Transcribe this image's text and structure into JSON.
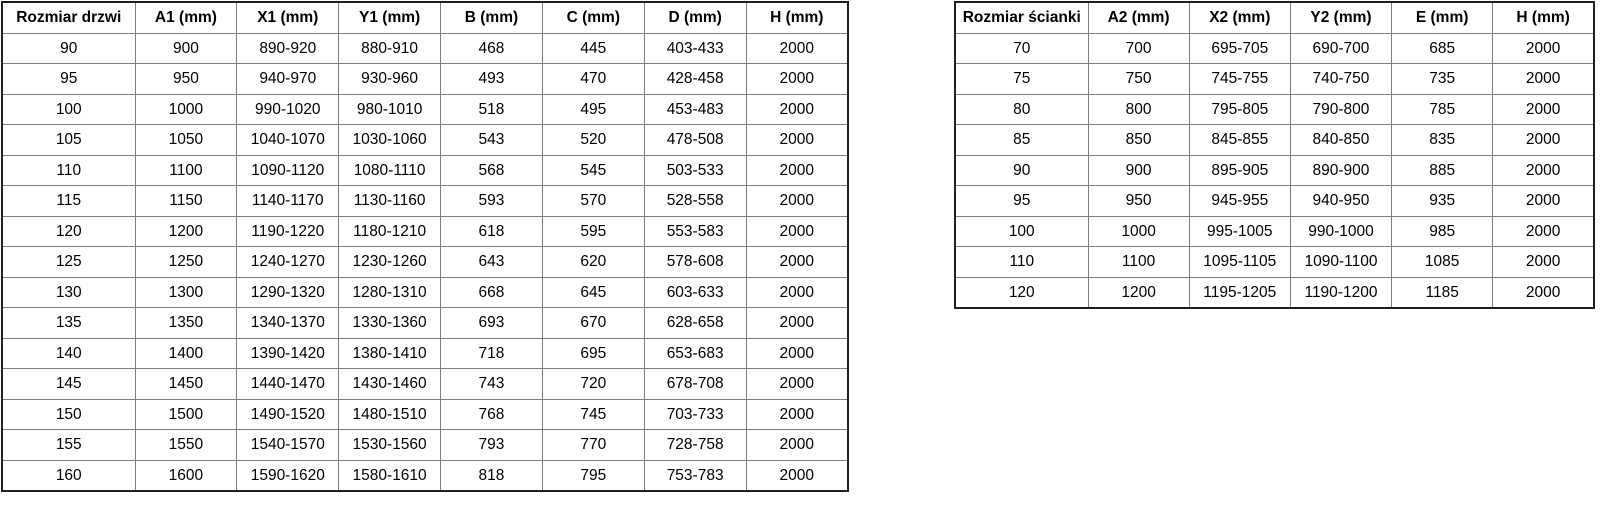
{
  "door_table": {
    "headers": [
      "Rozmiar drzwi",
      "A1 (mm)",
      "X1 (mm)",
      "Y1 (mm)",
      "B (mm)",
      "C (mm)",
      "D (mm)",
      "H (mm)"
    ],
    "rows": [
      [
        "90",
        "900",
        "890-920",
        "880-910",
        "468",
        "445",
        "403-433",
        "2000"
      ],
      [
        "95",
        "950",
        "940-970",
        "930-960",
        "493",
        "470",
        "428-458",
        "2000"
      ],
      [
        "100",
        "1000",
        "990-1020",
        "980-1010",
        "518",
        "495",
        "453-483",
        "2000"
      ],
      [
        "105",
        "1050",
        "1040-1070",
        "1030-1060",
        "543",
        "520",
        "478-508",
        "2000"
      ],
      [
        "110",
        "1100",
        "1090-1120",
        "1080-1110",
        "568",
        "545",
        "503-533",
        "2000"
      ],
      [
        "115",
        "1150",
        "1140-1170",
        "1130-1160",
        "593",
        "570",
        "528-558",
        "2000"
      ],
      [
        "120",
        "1200",
        "1190-1220",
        "1180-1210",
        "618",
        "595",
        "553-583",
        "2000"
      ],
      [
        "125",
        "1250",
        "1240-1270",
        "1230-1260",
        "643",
        "620",
        "578-608",
        "2000"
      ],
      [
        "130",
        "1300",
        "1290-1320",
        "1280-1310",
        "668",
        "645",
        "603-633",
        "2000"
      ],
      [
        "135",
        "1350",
        "1340-1370",
        "1330-1360",
        "693",
        "670",
        "628-658",
        "2000"
      ],
      [
        "140",
        "1400",
        "1390-1420",
        "1380-1410",
        "718",
        "695",
        "653-683",
        "2000"
      ],
      [
        "145",
        "1450",
        "1440-1470",
        "1430-1460",
        "743",
        "720",
        "678-708",
        "2000"
      ],
      [
        "150",
        "1500",
        "1490-1520",
        "1480-1510",
        "768",
        "745",
        "703-733",
        "2000"
      ],
      [
        "155",
        "1550",
        "1540-1570",
        "1530-1560",
        "793",
        "770",
        "728-758",
        "2000"
      ],
      [
        "160",
        "1600",
        "1590-1620",
        "1580-1610",
        "818",
        "795",
        "753-783",
        "2000"
      ]
    ]
  },
  "wall_table": {
    "headers": [
      "Rozmiar ścianki",
      "A2 (mm)",
      "X2 (mm)",
      "Y2 (mm)",
      "E (mm)",
      "H (mm)"
    ],
    "rows": [
      [
        "70",
        "700",
        "695-705",
        "690-700",
        "685",
        "2000"
      ],
      [
        "75",
        "750",
        "745-755",
        "740-750",
        "735",
        "2000"
      ],
      [
        "80",
        "800",
        "795-805",
        "790-800",
        "785",
        "2000"
      ],
      [
        "85",
        "850",
        "845-855",
        "840-850",
        "835",
        "2000"
      ],
      [
        "90",
        "900",
        "895-905",
        "890-900",
        "885",
        "2000"
      ],
      [
        "95",
        "950",
        "945-955",
        "940-950",
        "935",
        "2000"
      ],
      [
        "100",
        "1000",
        "995-1005",
        "990-1000",
        "985",
        "2000"
      ],
      [
        "110",
        "1100",
        "1095-1105",
        "1090-1100",
        "1085",
        "2000"
      ],
      [
        "120",
        "1200",
        "1195-1205",
        "1190-1200",
        "1185",
        "2000"
      ]
    ]
  },
  "colors": {
    "background": "#ffffff",
    "text": "#000000",
    "border_outer": "#1f1f1f",
    "border_inner": "#7d7d7d"
  }
}
